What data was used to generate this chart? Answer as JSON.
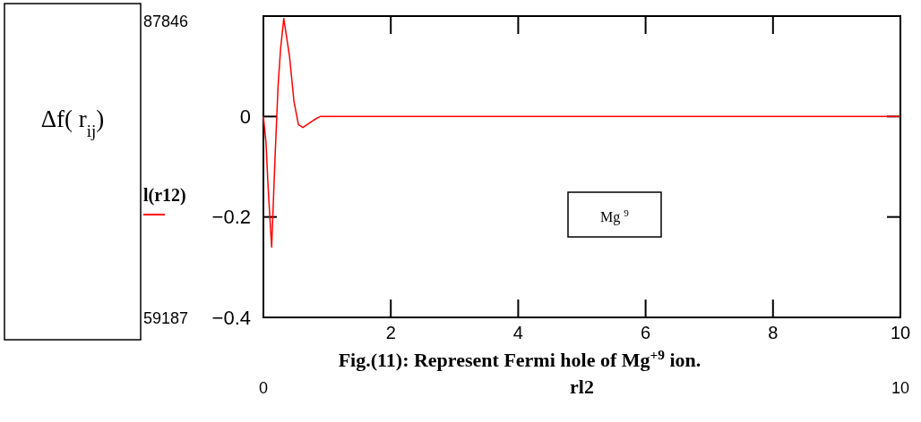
{
  "chart_data": {
    "type": "line",
    "title": "Fig.(11): Represent Fermi hole of  Mg$^{+9}$  ion.",
    "xlabel": "rl2",
    "ylabel": "Δf( r$_{ij}$)",
    "xlim": [
      0,
      10
    ],
    "xticks": [
      2,
      4,
      6,
      8,
      10
    ],
    "ylim": [
      -0.4,
      0.2
    ],
    "yticks": [
      -0.4,
      -0.2,
      0
    ],
    "grid": false,
    "legend": "left",
    "line_style": "solid",
    "marker": "none",
    "series": [
      {
        "name": "l(r12)",
        "color": "#ff0000",
        "x": [
          0,
          0.04,
          0.07,
          0.11,
          0.13,
          0.18,
          0.23,
          0.27,
          0.32,
          0.41,
          0.48,
          0.55,
          0.62,
          0.79,
          0.89,
          10
        ],
        "values": [
          0,
          -0.05,
          -0.13,
          -0.22,
          -0.26,
          -0.09,
          0.06,
          0.135,
          0.195,
          0.12,
          0.03,
          -0.016,
          -0.022,
          -0.007,
          0,
          0
        ]
      }
    ],
    "annotations": [
      "Mg $^{9}$",
      "87846",
      "59187",
      "0",
      "10"
    ]
  }
}
